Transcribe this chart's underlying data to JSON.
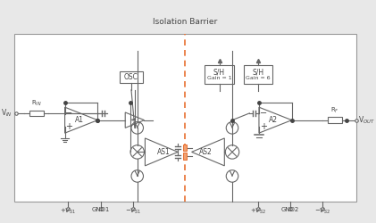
{
  "title": "Isolation Barrier",
  "bg_outer": "#e8e8e8",
  "bg_inner": "#ffffff",
  "border_color": "#999999",
  "line_color": "#666666",
  "barrier_color": "#e87030",
  "text_color": "#444444",
  "bottom_labels": [
    "+V_S1",
    "GND1",
    "-V_S1",
    "+V_S2",
    "GND2",
    "-V_S2"
  ],
  "left_label": "V_IN",
  "right_label": "V_OUT",
  "component_labels": [
    "A1",
    "A2",
    "AS1",
    "AS2",
    "OSC",
    "R_IN",
    "R_F"
  ],
  "sh_labels": [
    "S/H\nGain = 1",
    "S/H\nGain = 6"
  ]
}
